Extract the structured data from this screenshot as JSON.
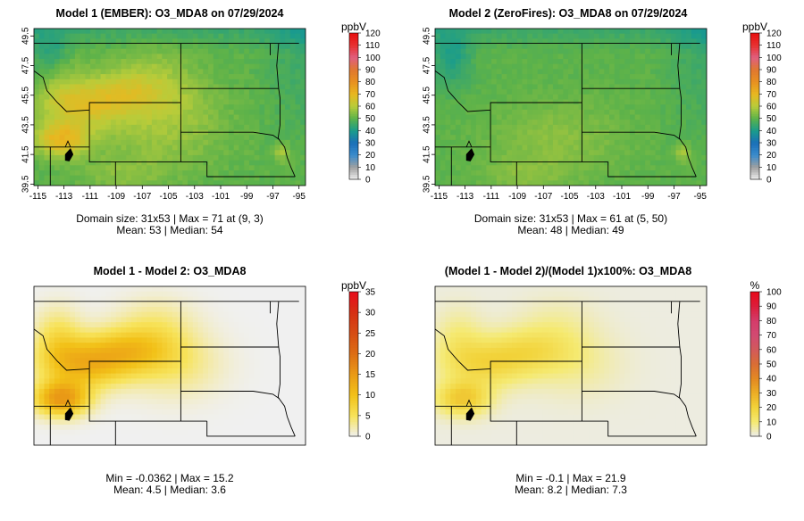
{
  "chart_data": [
    {
      "type": "heatmap",
      "title": "Model 1 (EMBER): O3_MDA8 on 07/29/2024",
      "x_ticks": [
        "-115",
        "-113",
        "-111",
        "-109",
        "-107",
        "-105",
        "-103",
        "-101",
        "-99",
        "-97",
        "-95"
      ],
      "y_ticks": [
        "39.5",
        "41.5",
        "43.5",
        "45.5",
        "47.5",
        "49.5"
      ],
      "x_range": [
        -115.3,
        -94.5
      ],
      "y_range": [
        39.4,
        50.0
      ],
      "colorbar": {
        "unit": "ppbV",
        "ticks": [
          "0",
          "10",
          "20",
          "30",
          "40",
          "50",
          "60",
          "70",
          "80",
          "90",
          "100",
          "110",
          "120"
        ],
        "min": 0,
        "max": 120
      },
      "stats": [
        "Domain size: 31x53 | Max = 71 at (9, 3)",
        "Mean: 53 |  Median: 54"
      ],
      "max_value": 71,
      "mean": 53,
      "median": 54
    },
    {
      "type": "heatmap",
      "title": "Model 2 (ZeroFires): O3_MDA8 on 07/29/2024",
      "x_ticks": [
        "-115",
        "-113",
        "-111",
        "-109",
        "-107",
        "-105",
        "-103",
        "-101",
        "-99",
        "-97",
        "-95"
      ],
      "y_ticks": [
        "39.5",
        "41.5",
        "43.5",
        "45.5",
        "47.5",
        "49.5"
      ],
      "x_range": [
        -115.3,
        -94.5
      ],
      "y_range": [
        39.4,
        50.0
      ],
      "colorbar": {
        "unit": "ppbV",
        "ticks": [
          "0",
          "10",
          "20",
          "30",
          "40",
          "50",
          "60",
          "70",
          "80",
          "90",
          "100",
          "110",
          "120"
        ],
        "min": 0,
        "max": 120
      },
      "stats": [
        "Domain size: 31x53 | Max = 61 at (5, 50)",
        "Mean: 48 |  Median: 49"
      ],
      "max_value": 61,
      "mean": 48,
      "median": 49
    },
    {
      "type": "heatmap",
      "title": "Model 1 - Model 2: O3_MDA8",
      "colorbar": {
        "unit": "ppbV",
        "ticks": [
          "0",
          "5",
          "10",
          "15",
          "20",
          "25",
          "30",
          "35"
        ],
        "min": 0,
        "max": 35
      },
      "stats": [
        "Min = -0.0362 | Max = 15.2",
        "Mean: 4.5 |  Median: 3.6"
      ],
      "min_value": -0.0362,
      "max_value": 15.2,
      "mean": 4.5,
      "median": 3.6
    },
    {
      "type": "heatmap",
      "title": "(Model 1 - Model 2)/(Model 1)x100%: O3_MDA8",
      "colorbar": {
        "unit": "%",
        "ticks": [
          "0",
          "10",
          "20",
          "30",
          "40",
          "50",
          "60",
          "70",
          "80",
          "90",
          "100"
        ],
        "min": 0,
        "max": 100
      },
      "stats": [
        "Min = -0.1 | Max = 21.9",
        "Mean: 8.2 |  Median: 7.3"
      ],
      "min_value": -0.1,
      "max_value": 21.9,
      "mean": 8.2,
      "median": 7.3
    }
  ],
  "colors": {
    "ppb_scale": [
      "#f0f0f0",
      "#a0a0a0",
      "#3a8ccc",
      "#1a6fb8",
      "#1a9c8c",
      "#5cb24a",
      "#b8cc3a",
      "#e8b820",
      "#e89020",
      "#e07830",
      "#e06080",
      "#e83030",
      "#e81010"
    ],
    "diff_scale": [
      "#f0f0f0",
      "#f7e35a",
      "#f2c118",
      "#ea9b16",
      "#dd6e15",
      "#d64d14",
      "#d63013",
      "#e80d1b"
    ],
    "pct_scale": [
      "#ececec",
      "#f5ea72",
      "#f2d33a",
      "#ecae25",
      "#e38922",
      "#d96e34",
      "#d25a5a",
      "#d24a72",
      "#d43c6a",
      "#dc1e3c",
      "#e80a1a"
    ]
  }
}
